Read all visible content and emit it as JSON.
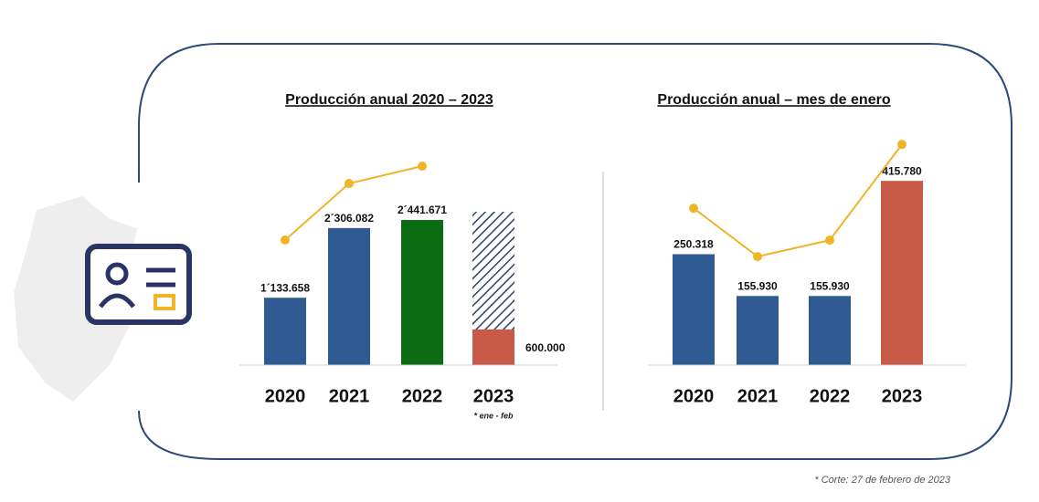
{
  "chart_data": [
    {
      "type": "bar",
      "title": "Producción anual 2020 – 2023",
      "categories": [
        "2020",
        "2021",
        "2022",
        "2023"
      ],
      "values": [
        1133658,
        2306082,
        2441671,
        600000
      ],
      "value_labels": [
        "1´133.658",
        "2´306.082",
        "2´441.671",
        "600.000"
      ],
      "colors": [
        "#2f5a92",
        "#2f5a92",
        "#0b6b10",
        "#c95a48"
      ],
      "projection": {
        "values": [
          null,
          null,
          null,
          2580000
        ],
        "color": "#2f3f66"
      },
      "line": {
        "values": [
          2104000,
          3056000,
          3348000,
          null
        ],
        "color": "#f0b429"
      },
      "annotation": "* ene - feb",
      "ylim": [
        0,
        3840000
      ]
    },
    {
      "type": "bar",
      "title": "Producción anual – mes de enero",
      "categories": [
        "2020",
        "2021",
        "2022",
        "2023"
      ],
      "values": [
        250318,
        155930,
        155930,
        415780
      ],
      "value_labels": [
        "250.318",
        "155.930",
        "155.930",
        "415.780"
      ],
      "colors": [
        "#2f5a92",
        "#2f5a92",
        "#2f5a92",
        "#c95a48"
      ],
      "line": {
        "values": [
          354000,
          245000,
          282000,
          498000
        ],
        "color": "#f0b429"
      },
      "ylim": [
        0,
        515000
      ]
    }
  ],
  "footnote": "* Corte: 27 de febrero de 2023"
}
